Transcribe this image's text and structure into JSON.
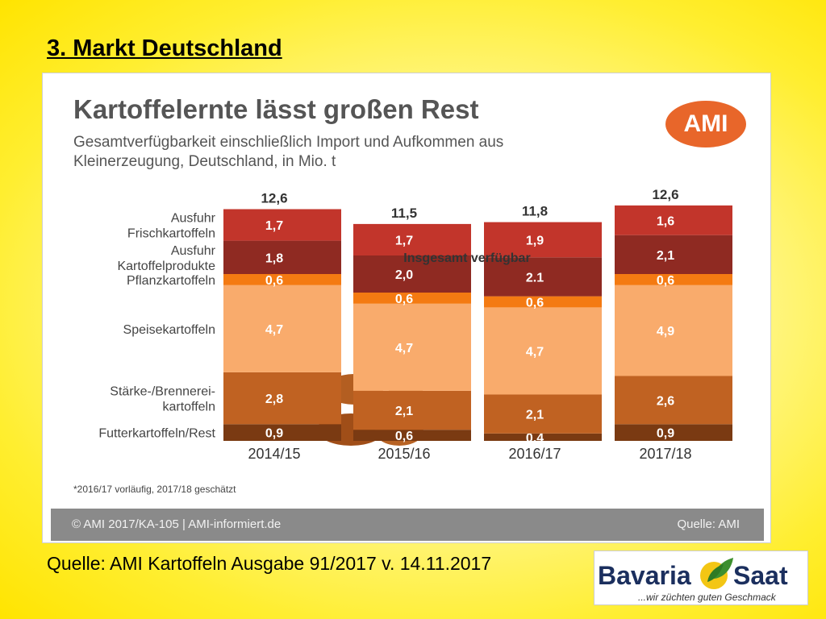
{
  "slide": {
    "title": "3. Markt Deutschland",
    "source": "Quelle: AMI Kartoffeln Ausgabe 91/2017 v. 14.11.2017"
  },
  "chart": {
    "title": "Kartoffelernte lässt großen Rest",
    "subtitle": "Gesamtverfügbarkeit einschließlich Import und Aufkommen aus Kleinerzeugung, Deutschland,  in Mio. t",
    "logo": "AMI",
    "total_label": "Insgesamt verfügbar",
    "footnote": "*2016/17 vorläufig, 2017/18 geschätzt",
    "footer_left": "© AMI 2017/KA-105 | AMI-informiert.de",
    "footer_right": "Quelle: AMI"
  },
  "chart_data": {
    "type": "bar",
    "stacked": true,
    "unit": "Mio. t",
    "categories": [
      "2014/15",
      "2015/16",
      "2016/17",
      "2017/18"
    ],
    "totals": [
      "12,6",
      "11,5",
      "11,8",
      "12,6"
    ],
    "series": [
      {
        "name": "Futterkartoffeln/Rest",
        "values": [
          0.9,
          0.6,
          0.4,
          0.9
        ],
        "labels": [
          "0,9",
          "0,6",
          "0,4",
          "0,9"
        ],
        "color": "#7a3a12"
      },
      {
        "name": "Stärke-/Brennerei-kartoffeln",
        "values": [
          2.8,
          2.1,
          2.1,
          2.6
        ],
        "labels": [
          "2,8",
          "2,1",
          "2,1",
          "2,6"
        ],
        "color": "#c06222"
      },
      {
        "name": "Speisekartoffeln",
        "values": [
          4.7,
          4.7,
          4.7,
          4.9
        ],
        "labels": [
          "4,7",
          "4,7",
          "4,7",
          "4,9"
        ],
        "color": "#f9ab6c"
      },
      {
        "name": "Pflanzkartoffeln",
        "values": [
          0.6,
          0.6,
          0.6,
          0.6
        ],
        "labels": [
          "0,6",
          "0,6",
          "0,6",
          "0,6"
        ],
        "color": "#f47a12"
      },
      {
        "name": "Ausfuhr Kartoffelprodukte",
        "values": [
          1.8,
          2.0,
          2.1,
          2.1
        ],
        "labels": [
          "1,8",
          "2,0",
          "2.1",
          "2,1"
        ],
        "color": "#8f2a22"
      },
      {
        "name": "Ausfuhr Frischkartoffeln",
        "values": [
          1.7,
          1.7,
          1.9,
          1.6
        ],
        "labels": [
          "1,7",
          "1,7",
          "1,9",
          "1,6"
        ],
        "color": "#c2352b"
      }
    ],
    "legend_lines": [
      [
        "Futterkartoffeln/Rest"
      ],
      [
        "Stärke-/Brennerei-",
        "kartoffeln"
      ],
      [
        "Speisekartoffeln"
      ],
      [
        "Pflanzkartoffeln"
      ],
      [
        "Ausfuhr",
        "Kartoffelprodukte"
      ],
      [
        "Ausfuhr",
        "Frischkartoffeln"
      ]
    ],
    "legend_placement": "left",
    "grid": false
  },
  "branding": {
    "name_left": "Bavaria",
    "name_right": "Saat",
    "slogan": "...wir züchten guten Geschmack"
  }
}
